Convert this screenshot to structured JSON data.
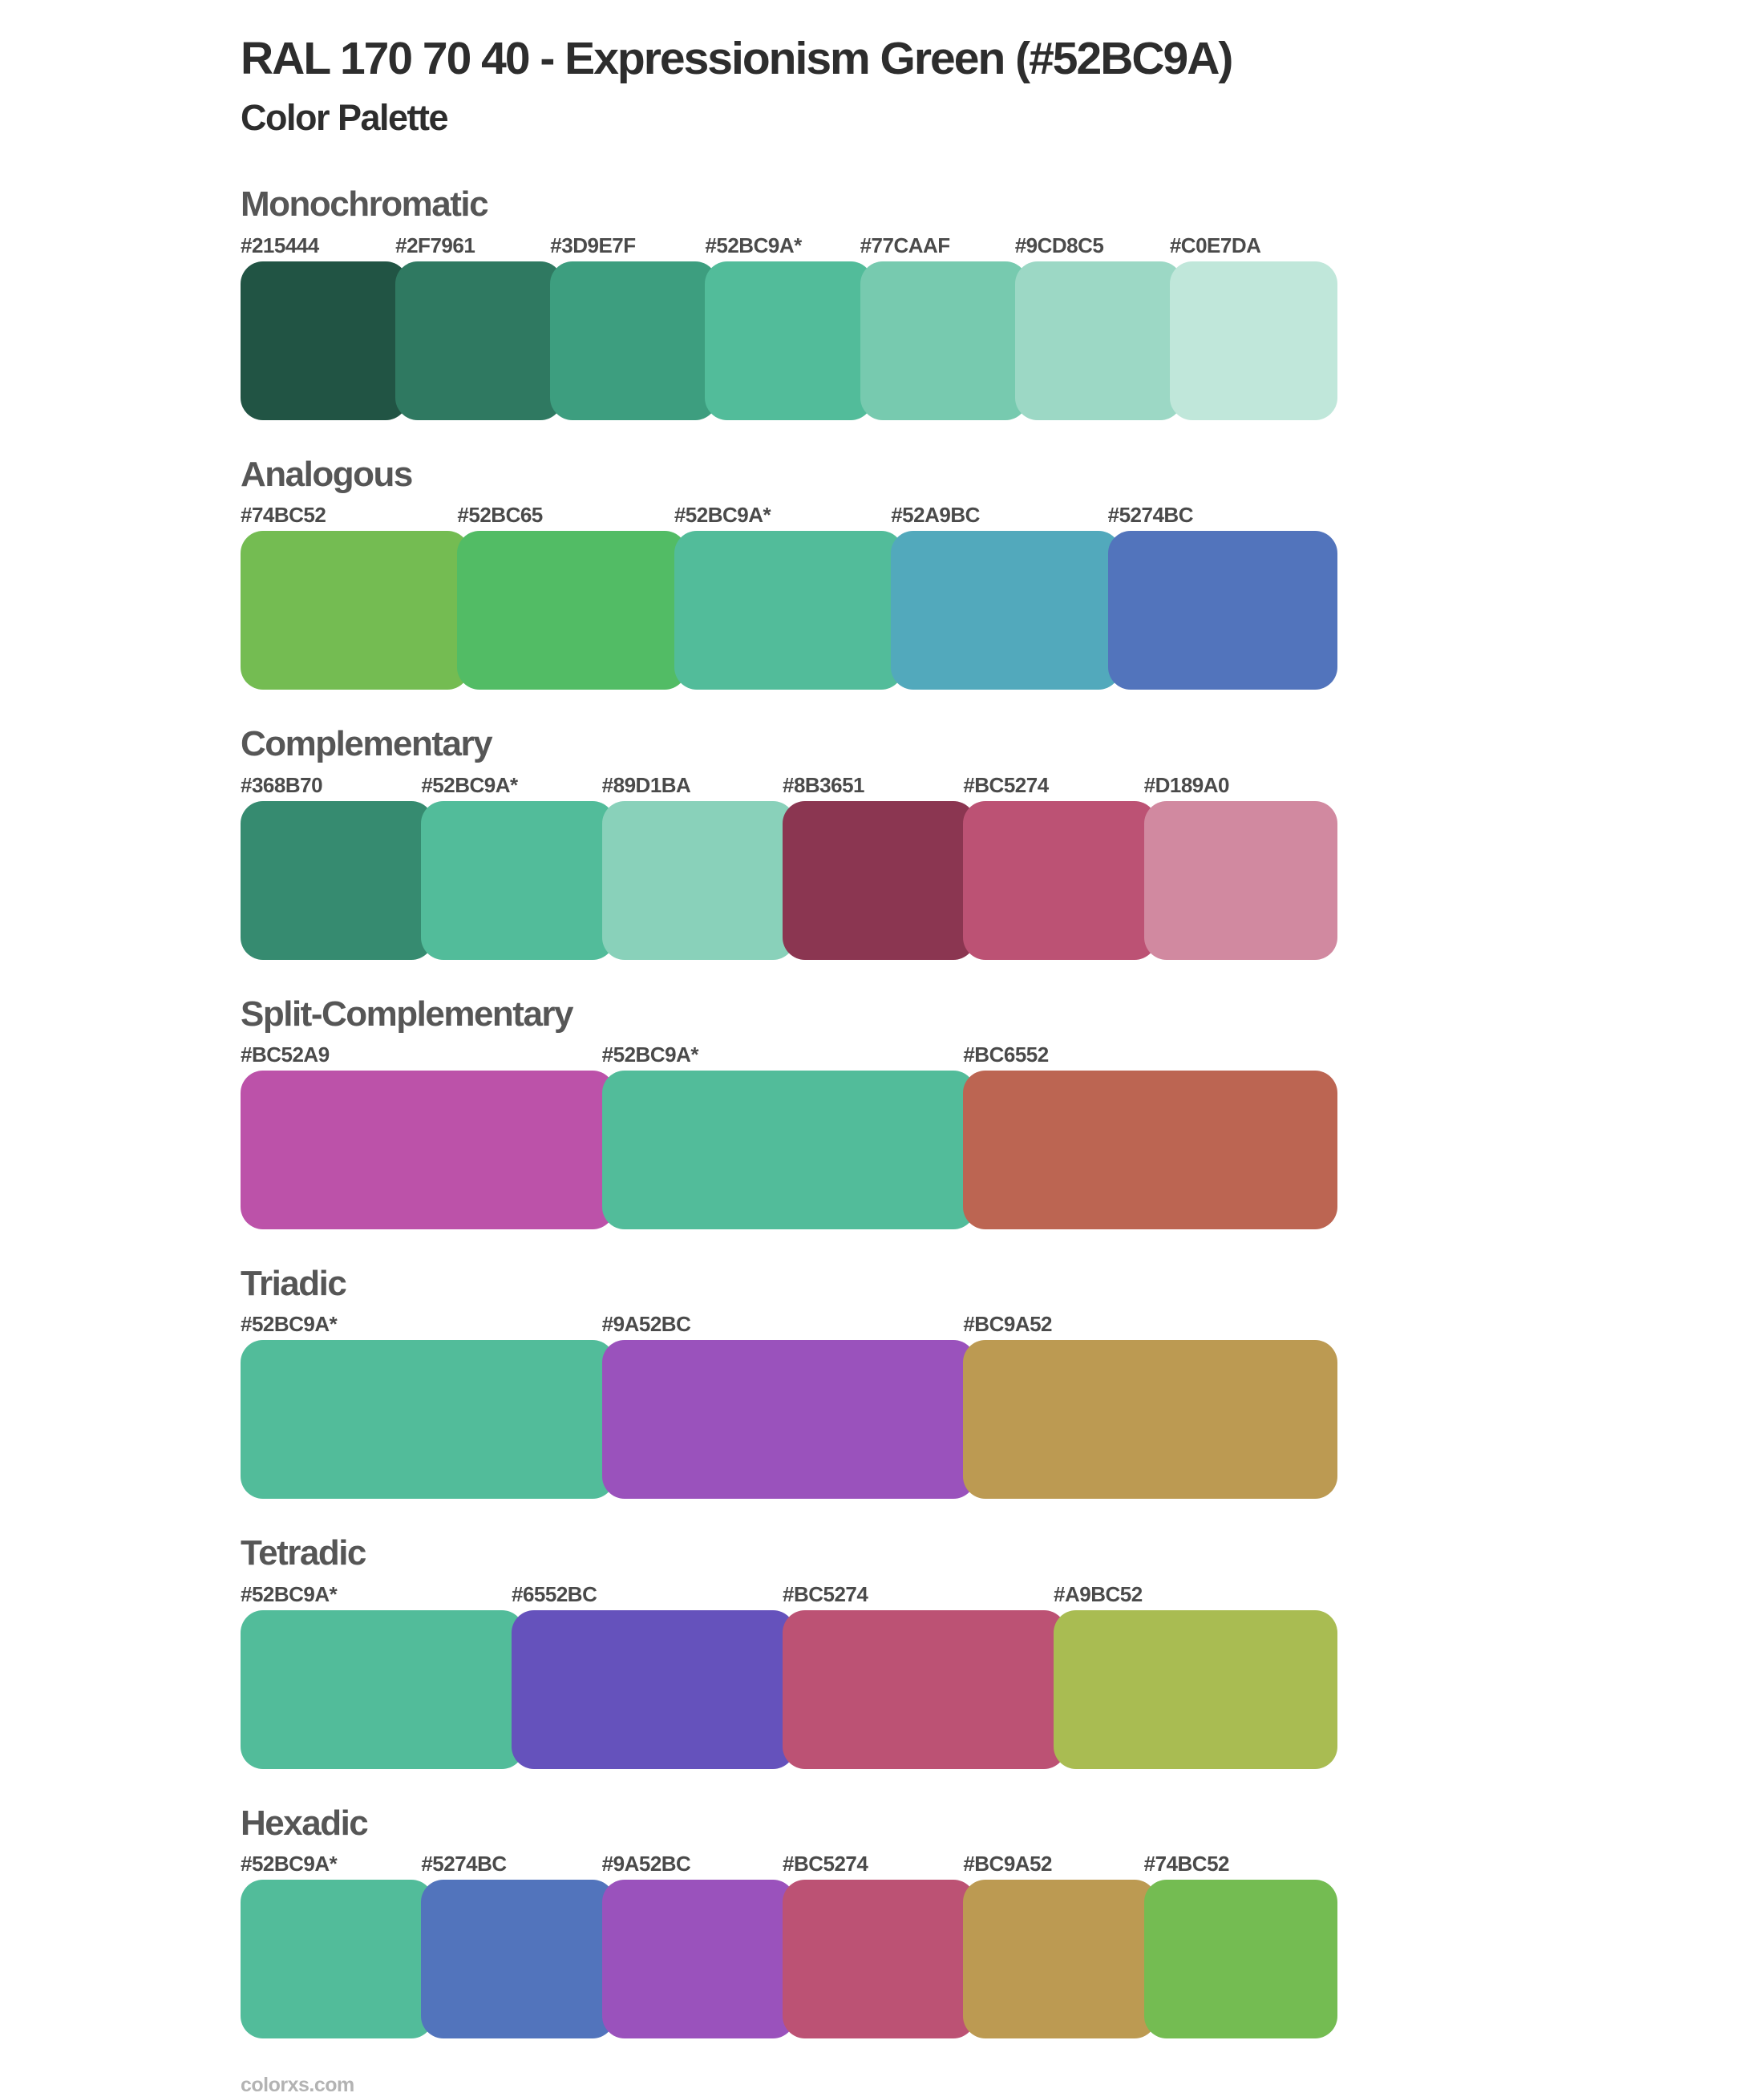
{
  "header": {
    "title": "RAL 170 70 40 - Expressionism Green (#52BC9A)",
    "subtitle": "Color Palette"
  },
  "base_color": {
    "label": "#52BC9A*",
    "hex": "#52BC9A"
  },
  "sections": [
    {
      "name": "Monochromatic",
      "swatches": [
        {
          "label": "#215444",
          "hex": "#215444"
        },
        {
          "label": "#2F7961",
          "hex": "#2F7961"
        },
        {
          "label": "#3D9E7F",
          "hex": "#3D9E7F"
        },
        {
          "label": "#52BC9A*",
          "hex": "#52BC9A"
        },
        {
          "label": "#77CAAF",
          "hex": "#77CAAF"
        },
        {
          "label": "#9CD8C5",
          "hex": "#9CD8C5"
        },
        {
          "label": "#C0E7DA",
          "hex": "#C0E7DA"
        }
      ]
    },
    {
      "name": "Analogous",
      "swatches": [
        {
          "label": "#74BC52",
          "hex": "#74BC52"
        },
        {
          "label": "#52BC65",
          "hex": "#52BC65"
        },
        {
          "label": "#52BC9A*",
          "hex": "#52BC9A"
        },
        {
          "label": "#52A9BC",
          "hex": "#52A9BC"
        },
        {
          "label": "#5274BC",
          "hex": "#5274BC"
        }
      ]
    },
    {
      "name": "Complementary",
      "swatches": [
        {
          "label": "#368B70",
          "hex": "#368B70"
        },
        {
          "label": "#52BC9A*",
          "hex": "#52BC9A"
        },
        {
          "label": "#89D1BA",
          "hex": "#89D1BA"
        },
        {
          "label": "#8B3651",
          "hex": "#8B3651"
        },
        {
          "label": "#BC5274",
          "hex": "#BC5274"
        },
        {
          "label": "#D189A0",
          "hex": "#D189A0"
        }
      ]
    },
    {
      "name": "Split-Complementary",
      "swatches": [
        {
          "label": "#BC52A9",
          "hex": "#BC52A9"
        },
        {
          "label": "#52BC9A*",
          "hex": "#52BC9A"
        },
        {
          "label": "#BC6552",
          "hex": "#BC6552"
        }
      ]
    },
    {
      "name": "Triadic",
      "swatches": [
        {
          "label": "#52BC9A*",
          "hex": "#52BC9A"
        },
        {
          "label": "#9A52BC",
          "hex": "#9A52BC"
        },
        {
          "label": "#BC9A52",
          "hex": "#BC9A52"
        }
      ]
    },
    {
      "name": "Tetradic",
      "swatches": [
        {
          "label": "#52BC9A*",
          "hex": "#52BC9A"
        },
        {
          "label": "#6552BC",
          "hex": "#6552BC"
        },
        {
          "label": "#BC5274",
          "hex": "#BC5274"
        },
        {
          "label": "#A9BC52",
          "hex": "#A9BC52"
        }
      ]
    },
    {
      "name": "Hexadic",
      "swatches": [
        {
          "label": "#52BC9A*",
          "hex": "#52BC9A"
        },
        {
          "label": "#5274BC",
          "hex": "#5274BC"
        },
        {
          "label": "#9A52BC",
          "hex": "#9A52BC"
        },
        {
          "label": "#BC5274",
          "hex": "#BC5274"
        },
        {
          "label": "#BC9A52",
          "hex": "#BC9A52"
        },
        {
          "label": "#74BC52",
          "hex": "#74BC52"
        }
      ]
    }
  ],
  "footer": {
    "brand": "colorxs.com"
  }
}
